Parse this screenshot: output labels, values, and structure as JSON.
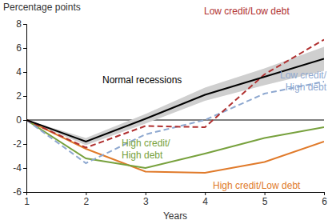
{
  "chart_data": {
    "type": "line",
    "y_label": "Percentage points",
    "x_label": "Years",
    "x": [
      1,
      2,
      3,
      4,
      5,
      6
    ],
    "xlim": [
      1,
      6
    ],
    "xticks": [
      1,
      2,
      3,
      4,
      5,
      6
    ],
    "ylim": [
      -6,
      8
    ],
    "yticks": [
      -6,
      -4,
      -2,
      0,
      2,
      4,
      6,
      8
    ],
    "series": [
      {
        "name": "Normal recessions",
        "color": "#000000",
        "line_style": "solid",
        "values": [
          0,
          -1.8,
          0.1,
          2.1,
          3.6,
          5.1
        ],
        "lower": [
          0,
          -2.1,
          -0.3,
          1.6,
          2.9,
          4.1
        ],
        "upper": [
          0,
          -1.5,
          0.5,
          2.7,
          4.3,
          6.1
        ]
      },
      {
        "name": "Low credit/Low debt",
        "color": "#b03030",
        "line_style": "dashed",
        "values": [
          0,
          -2.3,
          -0.5,
          -0.6,
          3.8,
          6.7
        ]
      },
      {
        "name": "Low credit/High debt",
        "color": "#8ea8d0",
        "line_style": "dashed",
        "values": [
          0,
          -3.6,
          -1.2,
          0,
          2.2,
          3.2
        ]
      },
      {
        "name": "High credit/High debt",
        "color": "#77a13d",
        "line_style": "solid",
        "values": [
          0,
          -3.2,
          -4.0,
          -2.8,
          -1.5,
          -0.6
        ]
      },
      {
        "name": "High credit/Low debt",
        "color": "#e07a2a",
        "line_style": "solid",
        "values": [
          0,
          -2.4,
          -4.3,
          -4.4,
          -3.5,
          -1.8
        ]
      }
    ]
  }
}
